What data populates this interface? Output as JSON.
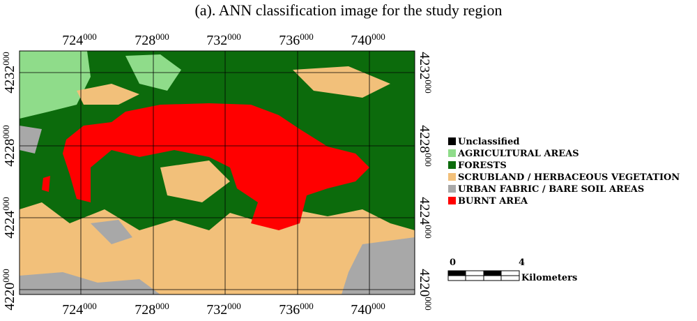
{
  "title": "(a). ANN classification image for the study region",
  "x_labels": [
    {
      "major": "724",
      "minor": "000"
    },
    {
      "major": "728",
      "minor": "000"
    },
    {
      "major": "732",
      "minor": "000"
    },
    {
      "major": "736",
      "minor": "000"
    },
    {
      "major": "740",
      "minor": "000"
    }
  ],
  "y_labels": [
    {
      "major": "4232",
      "minor": "000"
    },
    {
      "major": "4228",
      "minor": "000"
    },
    {
      "major": "4224",
      "minor": "000"
    },
    {
      "major": "4220",
      "minor": "000"
    }
  ],
  "legend": [
    {
      "label": "Unclassified",
      "color": "#000000"
    },
    {
      "label": "AGRICULTURAL AREAS",
      "color": "#8fdc8a"
    },
    {
      "label": "FORESTS",
      "color": "#0c6b0c"
    },
    {
      "label": "SCRUBLAND / HERBACEOUS VEGETATION",
      "color": "#f2c07a"
    },
    {
      "label": "URBAN FABRIC / BARE SOIL AREAS",
      "color": "#a8a8a8"
    },
    {
      "label": "BURNT AREA",
      "color": "#ff0000"
    }
  ],
  "scale": {
    "start": "0",
    "end": "4",
    "unit": "Kilometers"
  }
}
